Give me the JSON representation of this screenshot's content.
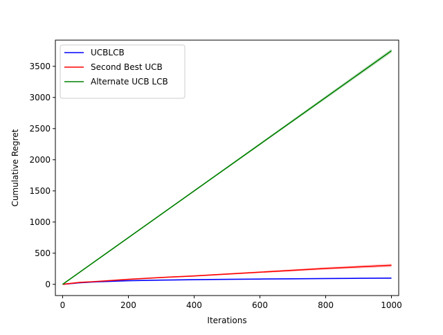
{
  "chart_data": {
    "type": "line",
    "xlabel": "Iterations",
    "ylabel": "Cumulative Regret",
    "xlim": [
      -22,
      1022
    ],
    "ylim": [
      -180,
      3920
    ],
    "x_ticks": [
      0,
      200,
      400,
      600,
      800,
      1000
    ],
    "y_ticks": [
      0,
      500,
      1000,
      1500,
      2000,
      2500,
      3000,
      3500
    ],
    "legend_position": "top-left",
    "series": [
      {
        "name": "UCBLCB",
        "color": "#0000ff",
        "x": [
          0,
          50,
          100,
          200,
          300,
          400,
          500,
          600,
          700,
          800,
          900,
          1000
        ],
        "y": [
          0,
          25,
          40,
          58,
          68,
          75,
          80,
          85,
          89,
          93,
          97,
          100
        ],
        "band": [
          0,
          2,
          3,
          4,
          4,
          4,
          5,
          5,
          5,
          5,
          5,
          5
        ]
      },
      {
        "name": "Second Best UCB",
        "color": "#ff0000",
        "x": [
          0,
          50,
          100,
          200,
          300,
          400,
          500,
          600,
          700,
          800,
          900,
          1000
        ],
        "y": [
          0,
          30,
          45,
          80,
          110,
          135,
          165,
          195,
          225,
          255,
          280,
          305
        ],
        "band": [
          0,
          2,
          3,
          5,
          7,
          9,
          11,
          14,
          17,
          20,
          24,
          28
        ]
      },
      {
        "name": "Alternate UCB LCB",
        "color": "#008000",
        "x": [
          0,
          100,
          200,
          300,
          400,
          500,
          600,
          700,
          800,
          900,
          1000
        ],
        "y": [
          0,
          375,
          750,
          1125,
          1500,
          1875,
          2250,
          2625,
          3000,
          3375,
          3750
        ],
        "band": [
          0,
          3,
          6,
          9,
          12,
          15,
          18,
          22,
          26,
          30,
          34
        ]
      }
    ]
  }
}
